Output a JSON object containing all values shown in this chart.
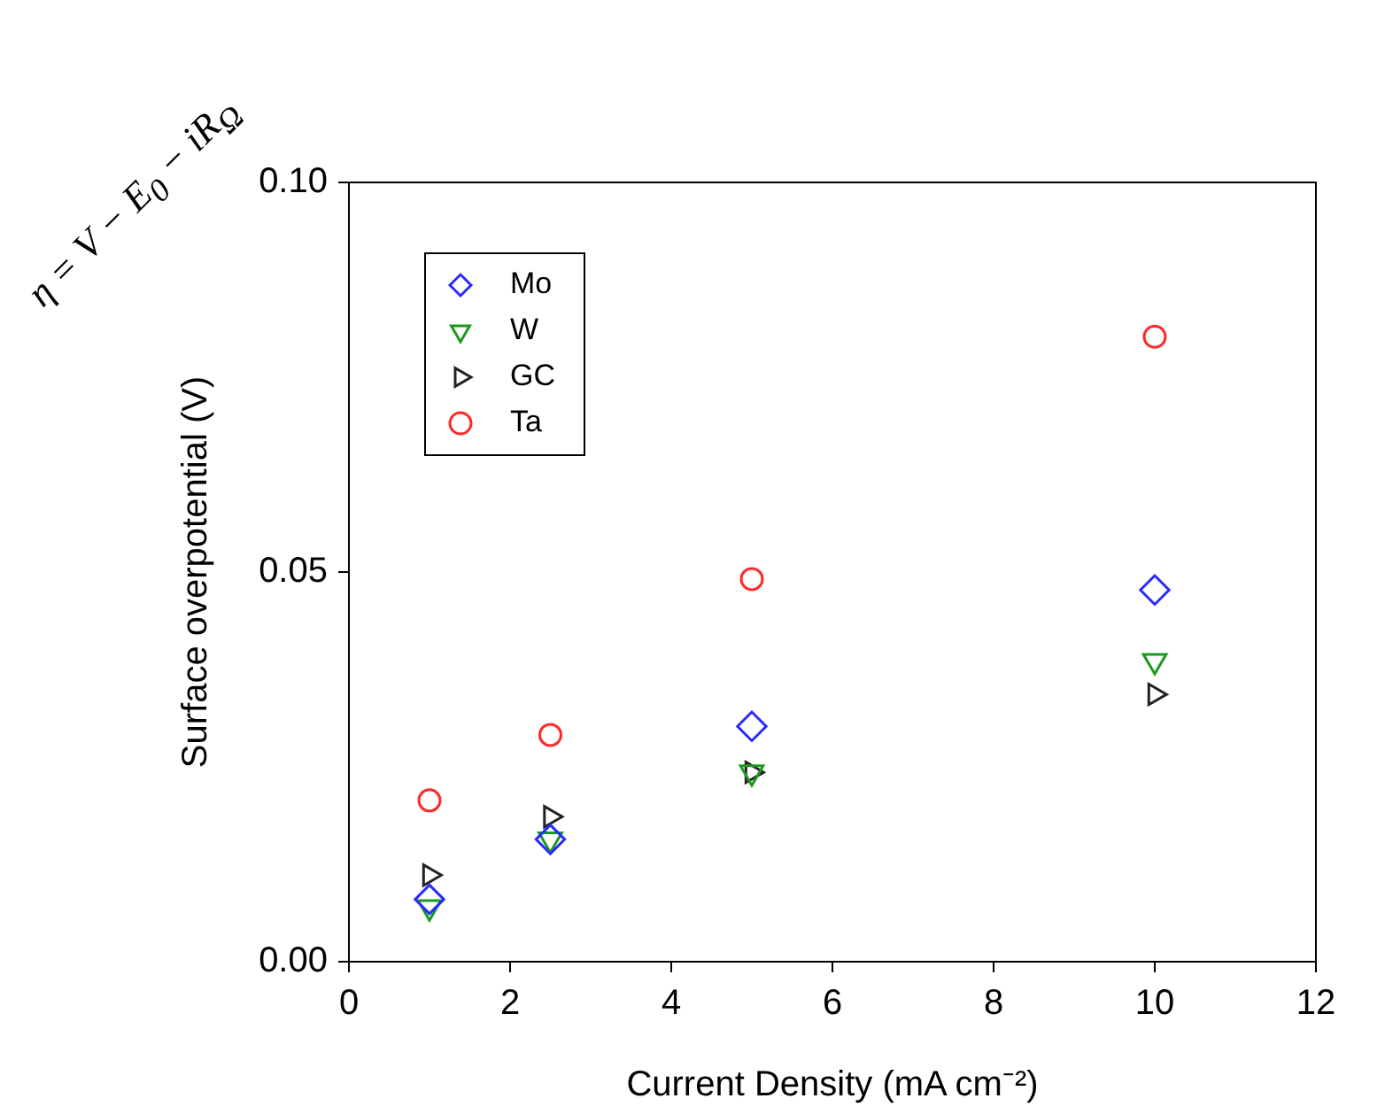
{
  "chart_data": {
    "type": "scatter",
    "xlabel": "Current Density (mA cm⁻²)",
    "ylabel": "Surface overpotential (V)",
    "annotations": [
      "η = V − E$_{0}$ − iR$_{Ω}$"
    ],
    "xlim": [
      0,
      12
    ],
    "xticks": [
      0,
      2,
      4,
      6,
      8,
      10,
      12
    ],
    "ylim": [
      0,
      0.1
    ],
    "yticks": [
      {
        "value": 0,
        "label": "0.00"
      },
      {
        "value": 0.05,
        "label": "0.05"
      },
      {
        "value": 0.1,
        "label": "0.10"
      }
    ],
    "x": [
      1,
      2.5,
      5,
      10
    ],
    "legend": "top left",
    "grid": false,
    "series": [
      {
        "name": "Mo",
        "color": "#2a2aff",
        "marker": "diamond",
        "values": [
          0.008,
          0.0157,
          0.0302,
          0.0477
        ]
      },
      {
        "name": "W",
        "color": "#1a9a1a",
        "marker": "triangle",
        "values": [
          0.007,
          0.0157,
          0.0243,
          0.0386
        ]
      },
      {
        "name": "GC",
        "color": "#222222",
        "marker": "triangle",
        "values": [
          0.0111,
          0.0186,
          0.0243,
          0.0343
        ]
      },
      {
        "name": "Ta",
        "color": "#ff2a2a",
        "marker": "circle",
        "values": [
          0.0207,
          0.0291,
          0.0491,
          0.0802
        ]
      }
    ]
  }
}
